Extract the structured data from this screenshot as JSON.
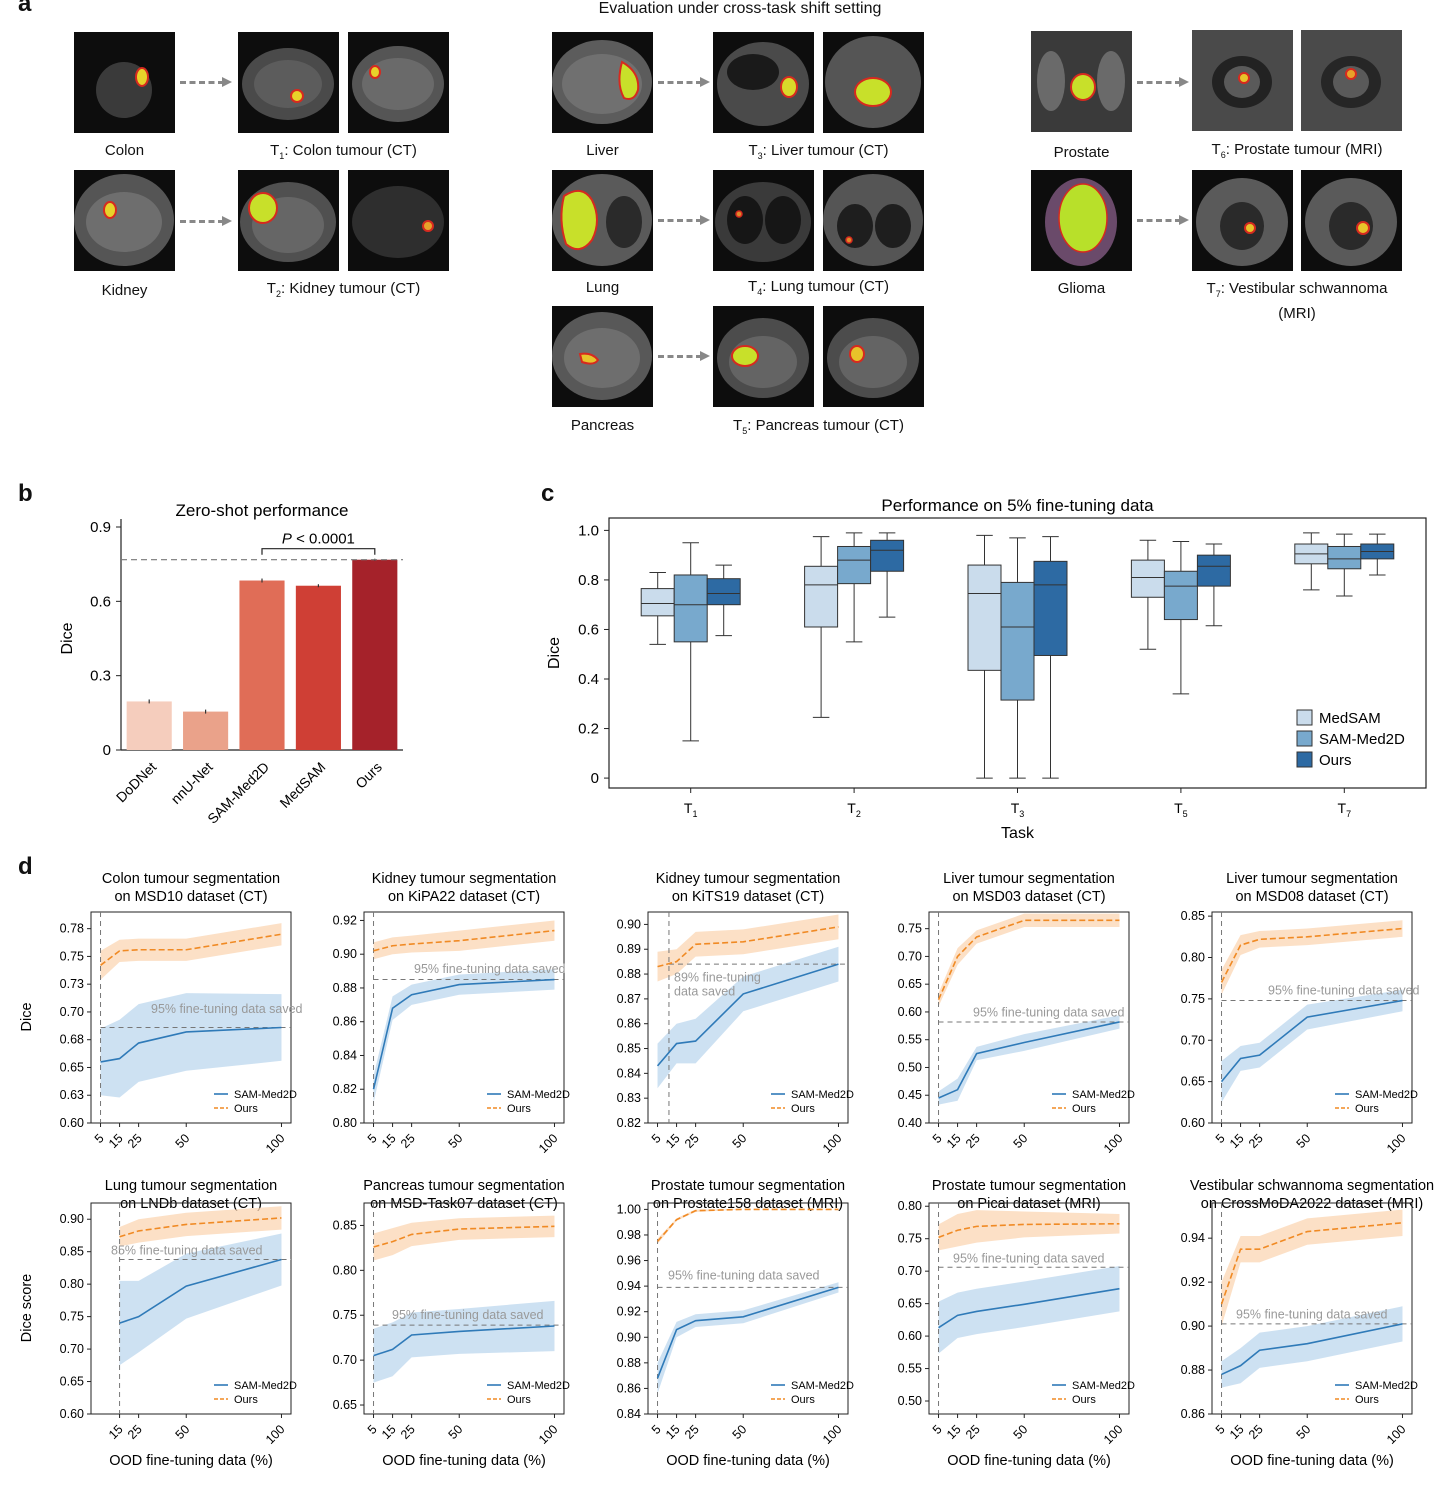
{
  "panel_labels": {
    "a": "a",
    "b": "b",
    "c": "c",
    "d": "d"
  },
  "panel_a": {
    "title": "Evaluation under cross-task shift setting",
    "groups": [
      {
        "source": "Colon",
        "target_prefix": "T",
        "target_sub": "1",
        "target_suffix": ": Colon tumour (CT)"
      },
      {
        "source": "Kidney",
        "target_prefix": "T",
        "target_sub": "2",
        "target_suffix": ": Kidney tumour (CT)"
      },
      {
        "source": "Liver",
        "target_prefix": "T",
        "target_sub": "3",
        "target_suffix": ": Liver tumour (CT)"
      },
      {
        "source": "Lung",
        "target_prefix": "T",
        "target_sub": "4",
        "target_suffix": ": Lung tumour (CT)"
      },
      {
        "source": "Pancreas",
        "target_prefix": "T",
        "target_sub": "5",
        "target_suffix": ": Pancreas tumour (CT)"
      },
      {
        "source": "Prostate",
        "target_prefix": "T",
        "target_sub": "6",
        "target_suffix": ": Prostate tumour (MRI)"
      },
      {
        "source": "Glioma",
        "target_prefix": "T",
        "target_sub": "7",
        "target_suffix": ": Vestibular schwannoma",
        "target_line2": "(MRI)"
      }
    ]
  },
  "chart_data": [
    {
      "id": "b",
      "type": "bar",
      "title": "Zero-shot performance",
      "ylabel": "Dice",
      "categories": [
        "DoDNet",
        "nnU-Net",
        "SAM-Med2D",
        "MedSAM",
        "Ours"
      ],
      "values": [
        0.196,
        0.155,
        0.684,
        0.663,
        0.768
      ],
      "errors": [
        0.008,
        0.008,
        0.008,
        0.006,
        0.004
      ],
      "colors": [
        "#f5cdbd",
        "#eaa28a",
        "#e06d57",
        "#cf3f35",
        "#a5222a"
      ],
      "ylim": [
        0,
        0.9
      ],
      "yticks": [
        "0",
        "0.3",
        "0.6",
        "0.9"
      ],
      "reference_line": 0.768,
      "annotation": {
        "p_label": "P",
        "p_rest": " < 0.0001"
      }
    },
    {
      "id": "c",
      "type": "box",
      "title": "Performance on 5% fine-tuning data",
      "xlabel": "Task",
      "ylabel": "Dice",
      "categories": [
        {
          "main": "T",
          "sub": "1"
        },
        {
          "main": "T",
          "sub": "2"
        },
        {
          "main": "T",
          "sub": "3"
        },
        {
          "main": "T",
          "sub": "5"
        },
        {
          "main": "T",
          "sub": "7"
        }
      ],
      "ylim": [
        -0.04,
        1.05
      ],
      "yticks": [
        "0",
        "0.2",
        "0.4",
        "0.6",
        "0.8",
        "1.0"
      ],
      "legend_position": "bottom-right",
      "series": [
        {
          "name": "MedSAM",
          "color": "#cadcec",
          "boxes": [
            [
              0.54,
              0.655,
              0.705,
              0.765,
              0.83
            ],
            [
              0.245,
              0.61,
              0.78,
              0.855,
              0.975
            ],
            [
              0,
              0.435,
              0.745,
              0.86,
              0.98
            ],
            [
              0.52,
              0.73,
              0.81,
              0.88,
              0.96
            ],
            [
              0.76,
              0.865,
              0.905,
              0.945,
              0.99
            ]
          ]
        },
        {
          "name": "SAM-Med2D",
          "color": "#78a9cd",
          "boxes": [
            [
              0.15,
              0.55,
              0.7,
              0.82,
              0.95
            ],
            [
              0.55,
              0.785,
              0.88,
              0.935,
              0.99
            ],
            [
              0,
              0.315,
              0.61,
              0.79,
              0.97
            ],
            [
              0.34,
              0.64,
              0.775,
              0.835,
              0.955
            ],
            [
              0.735,
              0.845,
              0.885,
              0.935,
              0.985
            ]
          ]
        },
        {
          "name": "Ours",
          "color": "#2d6aa3",
          "boxes": [
            [
              0.575,
              0.7,
              0.745,
              0.805,
              0.86
            ],
            [
              0.65,
              0.835,
              0.92,
              0.96,
              0.99
            ],
            [
              0,
              0.495,
              0.78,
              0.875,
              0.975
            ],
            [
              0.615,
              0.775,
              0.855,
              0.9,
              0.945
            ],
            [
              0.82,
              0.885,
              0.915,
              0.945,
              0.985
            ]
          ]
        }
      ]
    },
    {
      "id": "d",
      "type": "line",
      "xlabel": "OOD fine-tuning data (%)",
      "row_ylabels": [
        "Dice",
        "Dice score"
      ],
      "legend": [
        "SAM-Med2D",
        "Ours"
      ],
      "colors": {
        "sam": "#2f7ab8",
        "ours": "#f08a24",
        "sam_band": "#bcd7ee",
        "ours_band": "#fbd5b3"
      },
      "panels": [
        {
          "title1": "Colon tumour segmentation",
          "title2": "on MSD10 dataset (CT)",
          "yticks": [
            "0.60",
            "0.63",
            "0.65",
            "0.68",
            "0.70",
            "0.73",
            "0.75",
            "0.78"
          ],
          "ytick_vals": [
            0.6,
            0.625,
            0.65,
            0.675,
            0.7,
            0.725,
            0.75,
            0.775
          ],
          "ylim": [
            0.6,
            0.79
          ],
          "x": [
            5,
            15,
            25,
            50,
            100
          ],
          "sam": [
            0.655,
            0.658,
            0.672,
            0.682,
            0.686
          ],
          "sam_band": [
            0.03,
            0.035,
            0.035,
            0.035,
            0.03
          ],
          "ours": [
            0.742,
            0.755,
            0.756,
            0.756,
            0.77
          ],
          "ours_band": [
            0.013,
            0.01,
            0.01,
            0.01,
            0.01
          ],
          "ref_y": 0.686,
          "vline_x": 5,
          "annot": "95% fine-tuning data saved",
          "annot_pos": [
            0.3,
            0.699
          ]
        },
        {
          "title1": "Kidney tumour segmentation",
          "title2": "on KiPA22 dataset (CT)",
          "yticks": [
            "0.80",
            "0.82",
            "0.84",
            "0.86",
            "0.88",
            "0.90",
            "0.92"
          ],
          "ytick_vals": [
            0.8,
            0.82,
            0.84,
            0.86,
            0.88,
            0.9,
            0.92
          ],
          "ylim": [
            0.8,
            0.925
          ],
          "x": [
            5,
            15,
            25,
            50,
            100
          ],
          "sam": [
            0.82,
            0.868,
            0.876,
            0.882,
            0.885
          ],
          "sam_band": [
            0.008,
            0.007,
            0.006,
            0.006,
            0.006
          ],
          "ours": [
            0.902,
            0.905,
            0.906,
            0.908,
            0.914
          ],
          "ours_band": [
            0.005,
            0.005,
            0.005,
            0.006,
            0.006
          ],
          "ref_y": 0.885,
          "vline_x": 5,
          "annot": "95% fine-tuning data saved",
          "annot_pos": [
            0.25,
            0.889
          ]
        },
        {
          "title1": "Kidney tumour segmentation",
          "title2": "on KiTS19 dataset (CT)",
          "yticks": [
            "0.82",
            "0.83",
            "0.84",
            "0.85",
            "0.86",
            "0.87",
            "0.88",
            "0.89",
            "0.90"
          ],
          "ytick_vals": [
            0.82,
            0.83,
            0.84,
            0.85,
            0.86,
            0.87,
            0.88,
            0.89,
            0.9
          ],
          "ylim": [
            0.82,
            0.905
          ],
          "x": [
            5,
            15,
            25,
            50,
            100
          ],
          "sam": [
            0.843,
            0.852,
            0.853,
            0.872,
            0.884
          ],
          "sam_band": [
            0.009,
            0.008,
            0.009,
            0.007,
            0.007
          ],
          "ours": [
            0.883,
            0.885,
            0.892,
            0.893,
            0.899
          ],
          "ours_band": [
            0.006,
            0.005,
            0.005,
            0.005,
            0.005
          ],
          "ref_y": 0.884,
          "vline_x": 11,
          "annot": "89% fine-tuning",
          "annot2": "data saved",
          "annot_pos": [
            0.13,
            0.877
          ]
        },
        {
          "title1": "Liver tumour segmentation",
          "title2": "on MSD03 dataset (CT)",
          "yticks": [
            "0.40",
            "0.45",
            "0.50",
            "0.55",
            "0.60",
            "0.65",
            "0.70",
            "0.75"
          ],
          "ytick_vals": [
            0.4,
            0.45,
            0.5,
            0.55,
            0.6,
            0.65,
            0.7,
            0.75
          ],
          "ylim": [
            0.4,
            0.78
          ],
          "x": [
            5,
            15,
            25,
            50,
            100
          ],
          "sam": [
            0.445,
            0.46,
            0.525,
            0.545,
            0.582
          ],
          "sam_band": [
            0.012,
            0.02,
            0.012,
            0.015,
            0.012
          ],
          "ours": [
            0.622,
            0.7,
            0.735,
            0.765,
            0.765
          ],
          "ours_band": [
            0.012,
            0.015,
            0.012,
            0.012,
            0.012
          ],
          "ref_y": 0.582,
          "vline_x": 5,
          "annot": "95% fine-tuning data saved",
          "annot_pos": [
            0.22,
            0.592
          ]
        },
        {
          "title1": "Liver tumour segmentation",
          "title2": "on MSD08 dataset (CT)",
          "yticks": [
            "0.60",
            "0.65",
            "0.70",
            "0.75",
            "0.80",
            "0.85"
          ],
          "ytick_vals": [
            0.6,
            0.65,
            0.7,
            0.75,
            0.8,
            0.85
          ],
          "ylim": [
            0.6,
            0.855
          ],
          "x": [
            5,
            15,
            25,
            50,
            100
          ],
          "sam": [
            0.65,
            0.678,
            0.682,
            0.728,
            0.748
          ],
          "sam_band": [
            0.025,
            0.015,
            0.015,
            0.015,
            0.013
          ],
          "ours": [
            0.77,
            0.815,
            0.822,
            0.825,
            0.835
          ],
          "ours_band": [
            0.015,
            0.012,
            0.01,
            0.01,
            0.01
          ],
          "ref_y": 0.748,
          "vline_x": 5,
          "annot": "95% fine-tuning data saved",
          "annot_pos": [
            0.28,
            0.755
          ]
        },
        {
          "title1": "Lung tumour segmentation",
          "title2": "on LNDb dataset (CT)",
          "yticks": [
            "0.60",
            "0.65",
            "0.70",
            "0.75",
            "0.80",
            "0.85",
            "0.90"
          ],
          "ytick_vals": [
            0.6,
            0.65,
            0.7,
            0.75,
            0.8,
            0.85,
            0.9
          ],
          "ylim": [
            0.6,
            0.925
          ],
          "x": [
            15,
            25,
            50,
            100
          ],
          "xticks": [
            15,
            25,
            50,
            100
          ],
          "sam": [
            0.74,
            0.75,
            0.797,
            0.838
          ],
          "sam_band": [
            0.065,
            0.055,
            0.05,
            0.04
          ],
          "ours": [
            0.873,
            0.882,
            0.892,
            0.902
          ],
          "ours_band": [
            0.015,
            0.018,
            0.018,
            0.018
          ],
          "ref_y": 0.838,
          "vline_x": 15,
          "annot": "85% fine-tuning data saved",
          "annot_pos": [
            0.1,
            0.846
          ]
        },
        {
          "title1": "Pancreas tumour segmentation",
          "title2": "on MSD-Task07 dataset (CT)",
          "yticks": [
            "0.65",
            "0.70",
            "0.75",
            "0.80",
            "0.85"
          ],
          "ytick_vals": [
            0.65,
            0.7,
            0.75,
            0.8,
            0.85
          ],
          "ylim": [
            0.64,
            0.875
          ],
          "x": [
            5,
            15,
            25,
            50,
            100
          ],
          "sam": [
            0.705,
            0.712,
            0.728,
            0.732,
            0.738
          ],
          "sam_band": [
            0.03,
            0.03,
            0.025,
            0.025,
            0.028
          ],
          "ours": [
            0.826,
            0.832,
            0.84,
            0.846,
            0.849
          ],
          "ours_band": [
            0.015,
            0.015,
            0.013,
            0.012,
            0.012
          ],
          "ref_y": 0.739,
          "vline_x": 5,
          "annot": "95% fine-tuning data saved",
          "annot_pos": [
            0.14,
            0.746
          ]
        },
        {
          "title1": "Prostate tumour segmentation",
          "title2": "on Prostate158 dataset (MRI)",
          "yticks": [
            "0.84",
            "0.86",
            "0.88",
            "0.90",
            "0.92",
            "0.94",
            "0.96",
            "0.98",
            "1.00"
          ],
          "ytick_vals": [
            0.84,
            0.86,
            0.88,
            0.9,
            0.92,
            0.94,
            0.96,
            0.98,
            1.0
          ],
          "ylim": [
            0.84,
            1.005
          ],
          "x": [
            5,
            15,
            25,
            50,
            100
          ],
          "sam": [
            0.868,
            0.906,
            0.913,
            0.916,
            0.939
          ],
          "sam_band": [
            0.012,
            0.006,
            0.005,
            0.005,
            0.004
          ],
          "ours": [
            0.975,
            0.992,
            0.999,
            1.0,
            1.0
          ],
          "ours_band": [
            0.002,
            0.001,
            0.001,
            0,
            0
          ],
          "ref_y": 0.939,
          "vline_x": 5,
          "annot": "95% fine-tuning data saved",
          "annot_pos": [
            0.1,
            0.945
          ]
        },
        {
          "title1": "Prostate tumour segmentation",
          "title2": "on Picai dataset (MRI)",
          "yticks": [
            "0.50",
            "0.55",
            "0.60",
            "0.65",
            "0.70",
            "0.75",
            "0.80"
          ],
          "ytick_vals": [
            0.5,
            0.55,
            0.6,
            0.65,
            0.7,
            0.75,
            0.8
          ],
          "ylim": [
            0.48,
            0.805
          ],
          "x": [
            5,
            15,
            25,
            50,
            100
          ],
          "sam": [
            0.613,
            0.632,
            0.638,
            0.649,
            0.673
          ],
          "sam_band": [
            0.04,
            0.035,
            0.035,
            0.035,
            0.035
          ],
          "ours": [
            0.752,
            0.763,
            0.769,
            0.772,
            0.773
          ],
          "ours_band": [
            0.02,
            0.025,
            0.025,
            0.02,
            0.015
          ],
          "ref_y": 0.706,
          "vline_x": 5,
          "annot": "95% fine-tuning data saved",
          "annot_pos": [
            0.12,
            0.713
          ]
        },
        {
          "title1": "Vestibular schwannoma segmentation",
          "title2": "on CrossMoDA2022 dataset (MRI)",
          "yticks": [
            "0.86",
            "0.88",
            "0.90",
            "0.92",
            "0.94"
          ],
          "ytick_vals": [
            0.86,
            0.88,
            0.9,
            0.92,
            0.94
          ],
          "ylim": [
            0.86,
            0.956
          ],
          "x": [
            5,
            15,
            25,
            50,
            100
          ],
          "sam": [
            0.878,
            0.882,
            0.889,
            0.892,
            0.901
          ],
          "sam_band": [
            0.006,
            0.008,
            0.008,
            0.008,
            0.008
          ],
          "ours": [
            0.91,
            0.935,
            0.935,
            0.943,
            0.947
          ],
          "ours_band": [
            0.01,
            0.006,
            0.006,
            0.006,
            0.006
          ],
          "ref_y": 0.901,
          "vline_x": 5,
          "annot": "95% fine-tuning data saved",
          "annot_pos": [
            0.12,
            0.9035
          ]
        }
      ]
    }
  ]
}
